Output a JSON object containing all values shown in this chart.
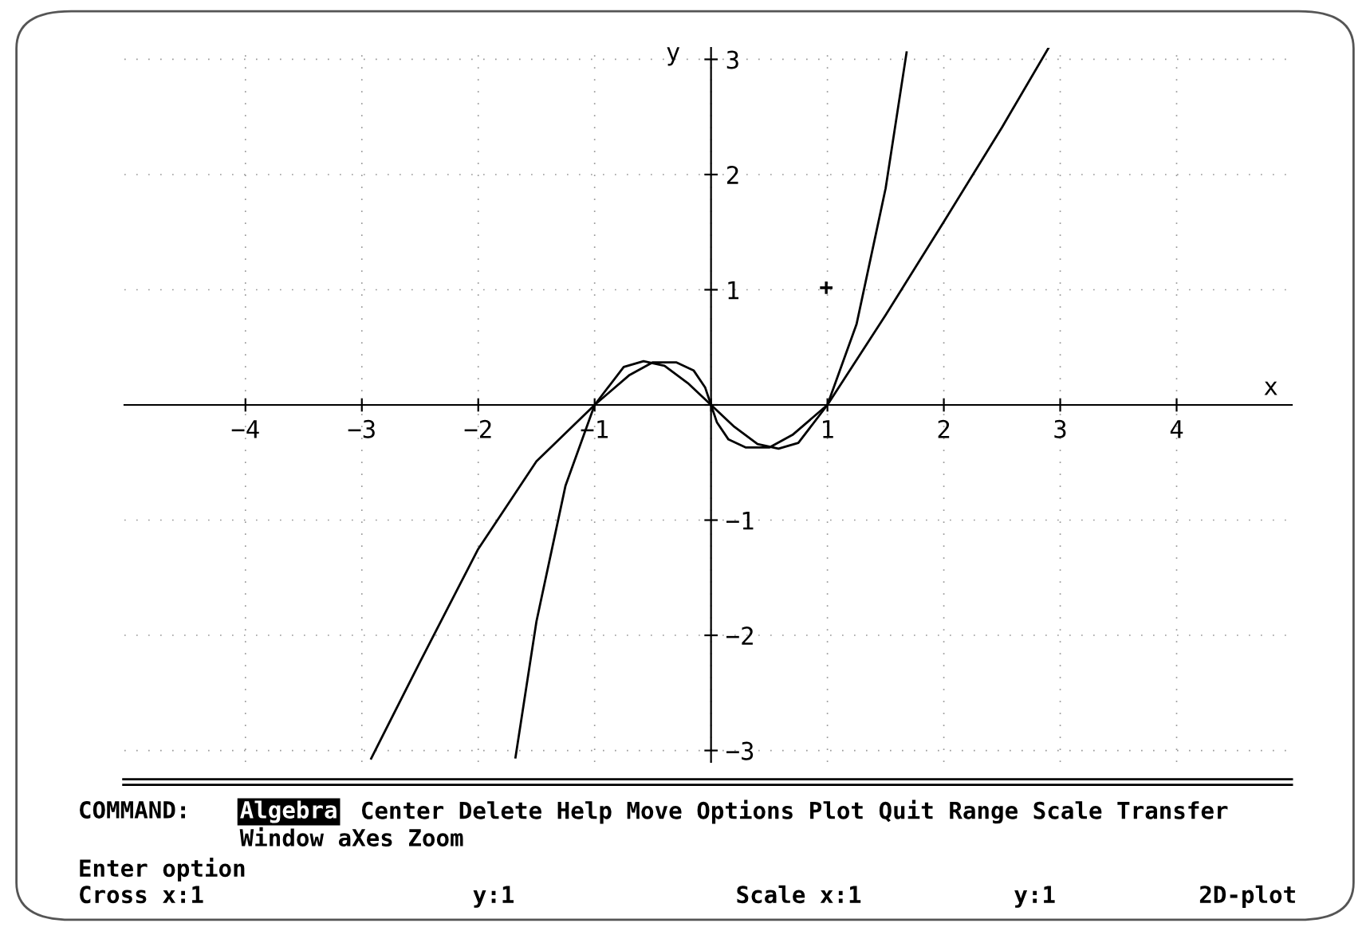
{
  "chart_data": {
    "type": "line",
    "xlabel": "x",
    "ylabel": "y",
    "xlim": [
      -5.04,
      4.99
    ],
    "ylim": [
      -3.1,
      3.1
    ],
    "xticks": [
      -4,
      -3,
      -2,
      -1,
      {
        "value": 0,
        "label": null
      },
      1,
      2,
      3,
      4
    ],
    "yticks": [
      -3,
      -2,
      -1,
      {
        "value": 0,
        "label": null
      },
      1,
      2,
      3
    ],
    "grid": true,
    "line_style": "solid",
    "marker": "none",
    "series": [
      {
        "color": "#000000",
        "x": [
          -1.68,
          -1.5,
          -1.25,
          -1,
          -0.75,
          -0.58,
          -0.4,
          -0.2,
          0,
          0.2,
          0.4,
          0.58,
          0.75,
          1,
          1.25,
          1.5,
          1.68
        ],
        "values": [
          -3.06,
          -1.88,
          -0.7,
          0,
          0.33,
          0.38,
          0.34,
          0.19,
          0,
          -0.19,
          -0.34,
          -0.38,
          -0.33,
          0,
          0.7,
          1.88,
          3.06
        ]
      },
      {
        "color": "#000000",
        "x": [
          -2.92,
          -2.5,
          -2,
          -1.5,
          -1,
          -0.7,
          -0.5,
          -0.3,
          -0.15,
          -0.05,
          0,
          0.05,
          0.15,
          0.3,
          0.5,
          0.7,
          1,
          1.5,
          2,
          2.5,
          2.9
        ],
        "values": [
          -3.07,
          -2.23,
          -1.25,
          -0.49,
          0,
          0.26,
          0.37,
          0.37,
          0.3,
          0.15,
          0,
          -0.15,
          -0.3,
          -0.37,
          -0.37,
          -0.26,
          0,
          0.78,
          1.59,
          2.41,
          3.1
        ]
      }
    ],
    "annotations": [
      "COMMAND:",
      "Algebra",
      "Center Delete Help Move Options Plot Quit Range Scale Transfer",
      "Window aXes Zoom",
      "Enter option",
      "Cross x:1",
      "y:1",
      "Scale x:1",
      "y:1",
      "2D-plot",
      "+"
    ]
  }
}
